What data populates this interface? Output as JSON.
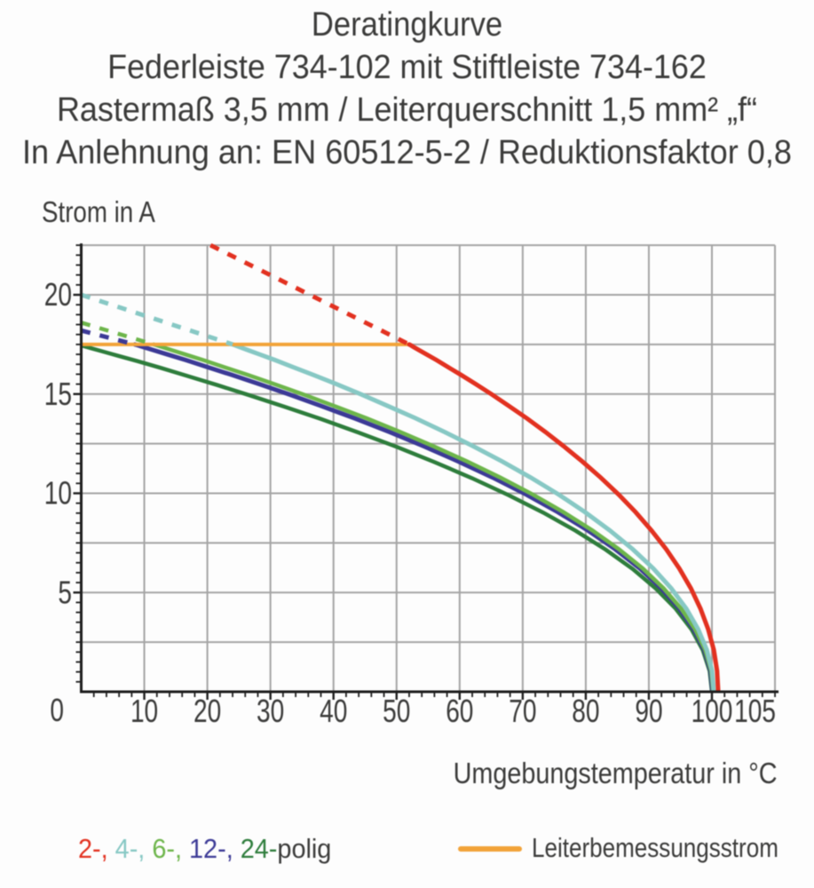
{
  "title": {
    "line1": "Deratingkurve",
    "line2": "Federleiste 734-102 mit Stiftleiste 734-162",
    "line3": "Rastermaß 3,5 mm / Leiterquerschnitt 1,5 mm² „f“",
    "line4": "In Anlehnung an: EN 60512-5-2 / Reduktionsfaktor 0,8"
  },
  "axes": {
    "y_title": "Strom in A",
    "x_title": "Umgebungstemperatur in °C"
  },
  "legend": {
    "pole_parts": [
      {
        "text": "2-,",
        "color": "#e23120"
      },
      {
        "text": "4-,",
        "color": "#87c8c4"
      },
      {
        "text": "6-,",
        "color": "#6db54b"
      },
      {
        "text": "12-,",
        "color": "#3c3a96"
      },
      {
        "text": "24-",
        "color": "#2e7d3c"
      }
    ],
    "pole_suffix": "polig",
    "rated_label": "Leiterbemessungsstrom",
    "rated_color": "#f2a339"
  },
  "colors": {
    "background": "#fdfdfd",
    "grid": "#a4a4a4",
    "axis": "#1e1e1e",
    "text": "#3b3b3a",
    "rated_line": "#f2a339"
  },
  "chart_data": {
    "type": "line",
    "title": "Deratingkurve",
    "xlabel": "Umgebungstemperatur in °C",
    "ylabel": "Strom in A",
    "xlim": [
      0,
      110
    ],
    "ylim": [
      0,
      22.5
    ],
    "grid": {
      "x_step": 10,
      "y_step": 2.5,
      "visible": true
    },
    "x_tick_labels": [
      10,
      20,
      30,
      40,
      50,
      60,
      70,
      80,
      90,
      100,
      105
    ],
    "y_tick_labels": [
      0,
      5,
      10,
      15,
      20
    ],
    "x_minor_step": 2,
    "y_minor_step": 0.5,
    "rated_current": {
      "label": "Leiterbemessungsstrom",
      "value": 17.5,
      "x_range": [
        0,
        52
      ],
      "color": "#f2a339"
    },
    "series": [
      {
        "name": "2-polig",
        "poles": 2,
        "color": "#e23120",
        "dash": [
          [
            20.5,
            22.5
          ],
          [
            52.0,
            17.5
          ]
        ],
        "solid": [
          [
            52.0,
            17.5
          ],
          [
            52.18,
            17.47
          ],
          [
            52.71,
            17.37
          ],
          [
            53.59,
            17.21
          ],
          [
            54.81,
            16.99
          ],
          [
            56.34,
            16.71
          ],
          [
            58.16,
            16.36
          ],
          [
            60.25,
            15.96
          ],
          [
            62.58,
            15.5
          ],
          [
            65.11,
            14.98
          ],
          [
            67.81,
            14.4
          ],
          [
            70.64,
            13.78
          ],
          [
            73.55,
            13.1
          ],
          [
            76.5,
            12.37
          ],
          [
            79.45,
            11.6
          ],
          [
            82.36,
            10.79
          ],
          [
            85.19,
            9.94
          ],
          [
            87.89,
            9.05
          ],
          [
            90.42,
            8.13
          ],
          [
            92.75,
            7.18
          ],
          [
            94.84,
            6.21
          ],
          [
            96.66,
            5.21
          ],
          [
            98.19,
            4.19
          ],
          [
            99.41,
            3.15
          ],
          [
            100.29,
            2.11
          ],
          [
            100.82,
            1.06
          ],
          [
            101.0,
            -0.0
          ]
        ]
      },
      {
        "name": "4-polig",
        "poles": 4,
        "color": "#87c8c4",
        "dash": [
          [
            0.0,
            20.0
          ],
          [
            24.0,
            17.5
          ]
        ],
        "solid": [
          [
            24.0,
            17.5
          ],
          [
            24.28,
            17.47
          ],
          [
            25.11,
            17.37
          ],
          [
            26.48,
            17.21
          ],
          [
            28.37,
            16.99
          ],
          [
            30.75,
            16.71
          ],
          [
            33.59,
            16.36
          ],
          [
            36.85,
            15.96
          ],
          [
            40.48,
            15.5
          ],
          [
            44.42,
            14.98
          ],
          [
            48.62,
            14.4
          ],
          [
            53.02,
            13.78
          ],
          [
            57.55,
            13.1
          ],
          [
            62.15,
            12.37
          ],
          [
            66.75,
            11.6
          ],
          [
            71.28,
            10.79
          ],
          [
            75.68,
            9.94
          ],
          [
            79.88,
            9.05
          ],
          [
            83.82,
            8.13
          ],
          [
            87.45,
            7.18
          ],
          [
            90.71,
            6.21
          ],
          [
            93.55,
            5.21
          ],
          [
            95.93,
            4.19
          ],
          [
            97.82,
            3.15
          ],
          [
            99.19,
            2.11
          ],
          [
            100.02,
            1.06
          ],
          [
            100.3,
            -0.0
          ]
        ]
      },
      {
        "name": "6-polig",
        "poles": 6,
        "color": "#6db54b",
        "dash": [
          [
            0.0,
            18.6
          ],
          [
            11.5,
            17.5
          ]
        ],
        "solid": [
          [
            11.5,
            17.5
          ],
          [
            11.82,
            17.47
          ],
          [
            12.79,
            17.37
          ],
          [
            14.38,
            17.21
          ],
          [
            16.58,
            16.99
          ],
          [
            19.35,
            16.71
          ],
          [
            22.65,
            16.36
          ],
          [
            26.44,
            15.96
          ],
          [
            30.66,
            15.5
          ],
          [
            35.24,
            14.98
          ],
          [
            40.12,
            14.4
          ],
          [
            45.24,
            13.78
          ],
          [
            50.5,
            13.1
          ],
          [
            55.85,
            12.37
          ],
          [
            61.2,
            11.6
          ],
          [
            66.46,
            10.79
          ],
          [
            71.58,
            9.94
          ],
          [
            76.46,
            9.05
          ],
          [
            81.04,
            8.13
          ],
          [
            85.26,
            7.18
          ],
          [
            89.05,
            6.21
          ],
          [
            92.35,
            5.21
          ],
          [
            95.12,
            4.19
          ],
          [
            97.32,
            3.15
          ],
          [
            98.91,
            2.11
          ],
          [
            99.88,
            1.06
          ],
          [
            100.2,
            -0.0
          ]
        ]
      },
      {
        "name": "12-polig",
        "poles": 12,
        "color": "#3c3a96",
        "dash": [
          [
            0.0,
            18.2
          ],
          [
            8.5,
            17.5
          ]
        ],
        "solid": [
          [
            8.5,
            17.5
          ],
          [
            8.83,
            17.47
          ],
          [
            9.83,
            17.37
          ],
          [
            11.48,
            17.21
          ],
          [
            13.75,
            16.99
          ],
          [
            16.61,
            16.71
          ],
          [
            20.02,
            16.36
          ],
          [
            23.93,
            15.96
          ],
          [
            28.28,
            15.5
          ],
          [
            33.02,
            14.98
          ],
          [
            38.06,
            14.4
          ],
          [
            43.34,
            13.78
          ],
          [
            48.78,
            13.1
          ],
          [
            54.3,
            12.37
          ],
          [
            59.82,
            11.6
          ],
          [
            65.26,
            10.79
          ],
          [
            70.54,
            9.94
          ],
          [
            75.58,
            9.05
          ],
          [
            80.32,
            8.13
          ],
          [
            84.67,
            7.18
          ],
          [
            88.58,
            6.21
          ],
          [
            91.99,
            5.21
          ],
          [
            94.85,
            4.19
          ],
          [
            97.12,
            3.15
          ],
          [
            98.77,
            2.11
          ],
          [
            99.77,
            1.06
          ],
          [
            100.1,
            -0.0
          ]
        ]
      },
      {
        "name": "24-polig",
        "poles": 24,
        "color": "#2e7d3c",
        "dash": null,
        "solid": [
          [
            0.0,
            17.45
          ],
          [
            0.36,
            17.42
          ],
          [
            1.45,
            17.32
          ],
          [
            3.25,
            17.16
          ],
          [
            5.73,
            16.94
          ],
          [
            8.85,
            16.66
          ],
          [
            12.57,
            16.32
          ],
          [
            16.84,
            15.91
          ],
          [
            21.6,
            15.45
          ],
          [
            26.76,
            14.93
          ],
          [
            32.27,
            14.36
          ],
          [
            38.03,
            13.74
          ],
          [
            43.97,
            13.06
          ],
          [
            50.0,
            12.34
          ],
          [
            56.03,
            11.57
          ],
          [
            61.97,
            10.76
          ],
          [
            67.73,
            9.91
          ],
          [
            73.24,
            9.03
          ],
          [
            78.4,
            8.11
          ],
          [
            83.16,
            7.16
          ],
          [
            87.43,
            6.19
          ],
          [
            91.15,
            5.19
          ],
          [
            94.27,
            4.18
          ],
          [
            96.75,
            3.15
          ],
          [
            98.55,
            2.1
          ],
          [
            99.64,
            1.05
          ],
          [
            100.0,
            -0.0
          ]
        ]
      }
    ]
  }
}
